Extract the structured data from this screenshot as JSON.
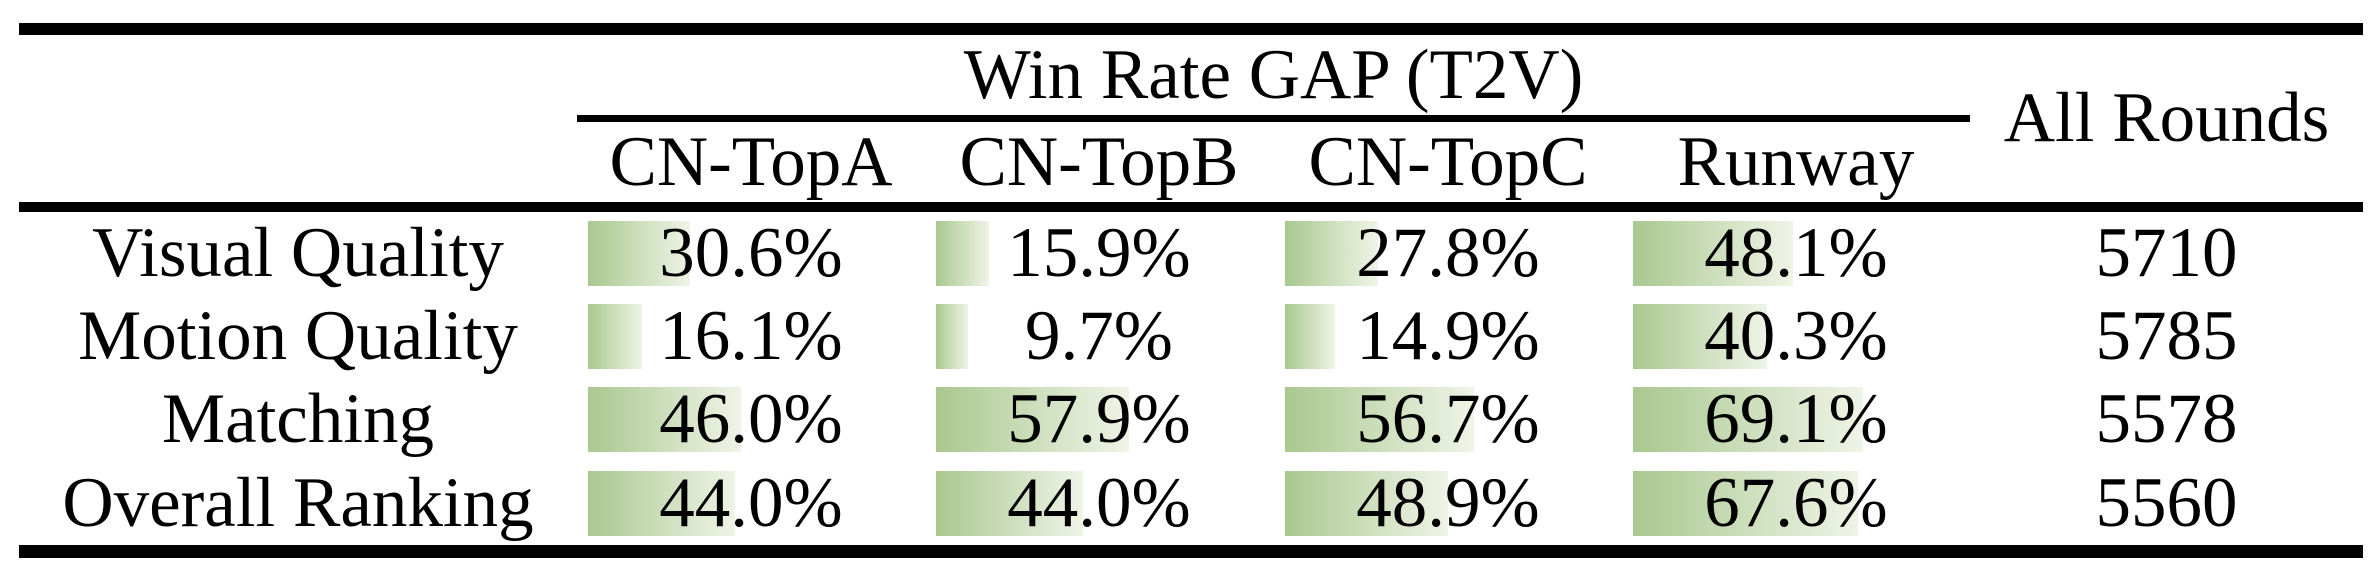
{
  "title": "Win Rate GAP (T2V)",
  "all_rounds_header": "All Rounds",
  "columns": [
    "CN-TopA",
    "CN-TopB",
    "CN-TopC",
    "Runway"
  ],
  "rows": [
    {
      "label": "Visual Quality",
      "cells": [
        {
          "text": "30.6%",
          "pct": 30.6
        },
        {
          "text": "15.9%",
          "pct": 15.9
        },
        {
          "text": "27.8%",
          "pct": 27.8
        },
        {
          "text": "48.1%",
          "pct": 48.1
        }
      ],
      "all_rounds": "5710"
    },
    {
      "label": "Motion Quality",
      "cells": [
        {
          "text": "16.1%",
          "pct": 16.1
        },
        {
          "text": "9.7%",
          "pct": 9.7
        },
        {
          "text": "14.9%",
          "pct": 14.9
        },
        {
          "text": "40.3%",
          "pct": 40.3
        }
      ],
      "all_rounds": "5785"
    },
    {
      "label": "Matching",
      "cells": [
        {
          "text": "46.0%",
          "pct": 46.0
        },
        {
          "text": "57.9%",
          "pct": 57.9
        },
        {
          "text": "56.7%",
          "pct": 56.7
        },
        {
          "text": "69.1%",
          "pct": 69.1
        }
      ],
      "all_rounds": "5578"
    },
    {
      "label": "Overall Ranking",
      "cells": [
        {
          "text": "44.0%",
          "pct": 44.0
        },
        {
          "text": "44.0%",
          "pct": 44.0
        },
        {
          "text": "48.9%",
          "pct": 48.9
        },
        {
          "text": "67.6%",
          "pct": 67.6
        }
      ],
      "all_rounds": "5560"
    }
  ],
  "colors": {
    "bar_gradient_left": "#a9c88f",
    "bar_gradient_right": "#eff4e7",
    "rule": "#000000",
    "background": "#ffffff"
  },
  "chart_data": {
    "type": "table",
    "title": "Win Rate GAP (T2V)",
    "categories": [
      "Visual Quality",
      "Motion Quality",
      "Matching",
      "Overall Ranking"
    ],
    "series": [
      {
        "name": "CN-TopA",
        "values": [
          30.6,
          16.1,
          46.0,
          44.0
        ]
      },
      {
        "name": "CN-TopB",
        "values": [
          15.9,
          9.7,
          57.9,
          44.0
        ]
      },
      {
        "name": "CN-TopC",
        "values": [
          27.8,
          14.9,
          56.7,
          48.9
        ]
      },
      {
        "name": "Runway",
        "values": [
          48.1,
          40.3,
          69.1,
          67.6
        ]
      }
    ],
    "all_rounds": [
      5710,
      5785,
      5578,
      5560
    ],
    "unit": "%",
    "bar_scale": "cell width proportional to percent, 100% ≈ 333px"
  }
}
